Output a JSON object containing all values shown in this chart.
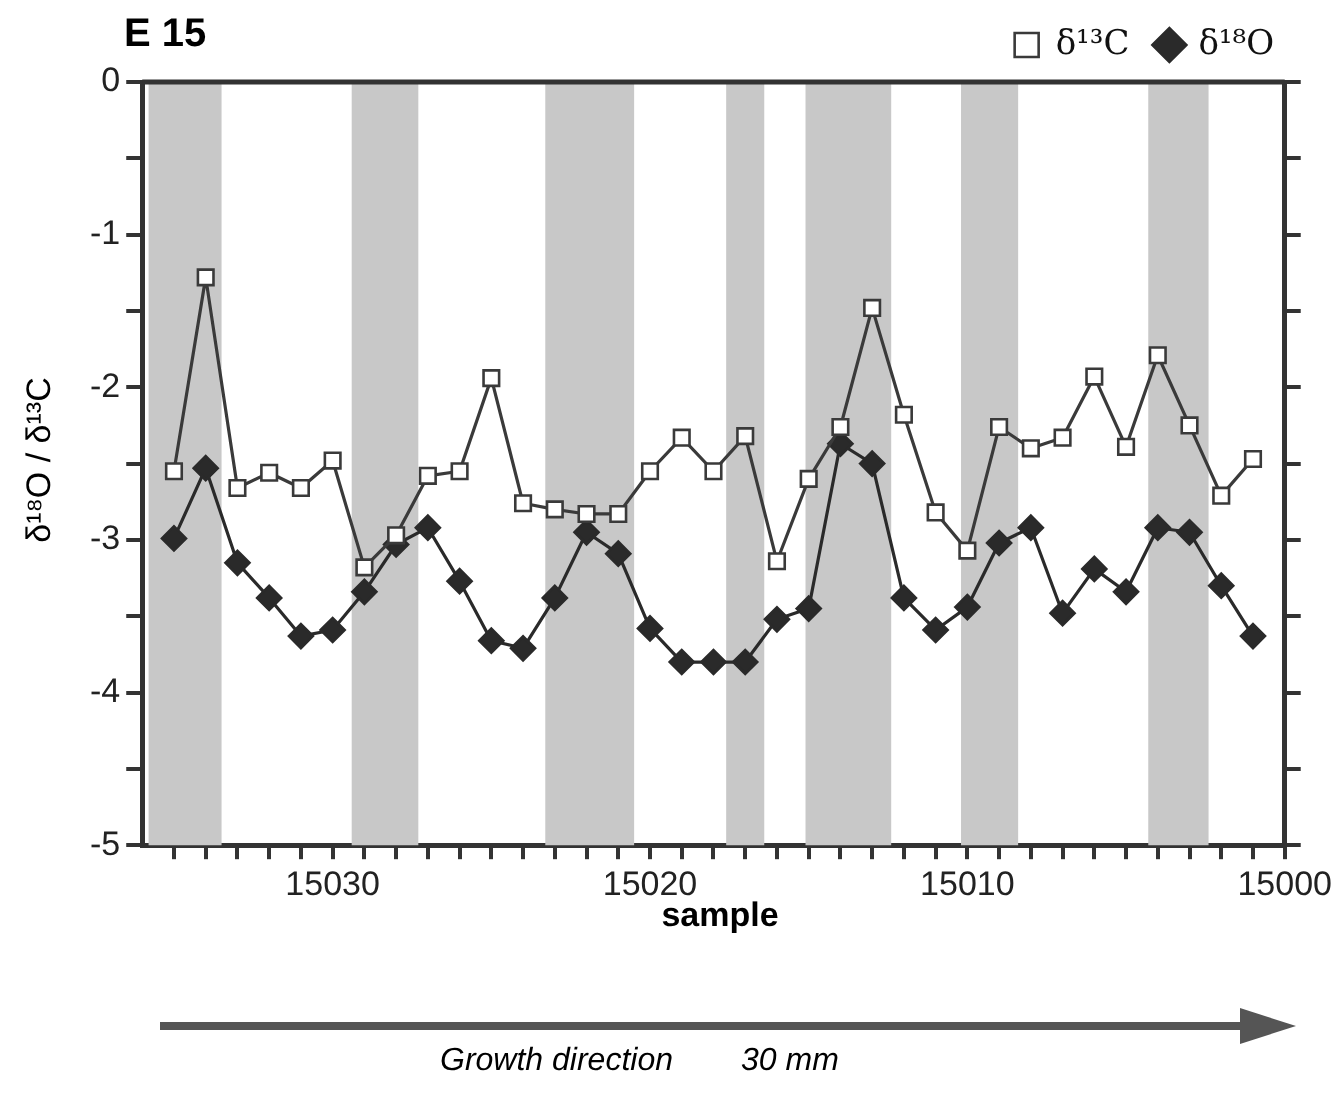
{
  "chart_data": {
    "type": "line",
    "title": "E 15",
    "xlabel": "sample",
    "ylabel": "δ¹⁸O / δ¹³C",
    "annotations": [
      "Growth direction",
      "30 mm"
    ],
    "x": [
      15035,
      15034,
      15033,
      15032,
      15031,
      15030,
      15029,
      15028,
      15027,
      15026,
      15025,
      15024,
      15023,
      15022,
      15021,
      15020,
      15019,
      15018,
      15017,
      15016,
      15015,
      15014,
      15013,
      15012,
      15011,
      15010,
      15009,
      15008,
      15007,
      15006,
      15005,
      15004,
      15003,
      15002,
      15001
    ],
    "series": [
      {
        "name": "δ¹³C",
        "color": "#3a3a3a",
        "marker": "square",
        "values": [
          -2.55,
          -1.28,
          -2.66,
          -2.56,
          -2.66,
          -2.48,
          -3.18,
          -2.97,
          -2.58,
          -2.55,
          -1.94,
          -2.76,
          -2.8,
          -2.83,
          -2.83,
          -2.55,
          -2.33,
          -2.55,
          -2.32,
          -3.14,
          -2.6,
          -2.26,
          -1.48,
          -2.18,
          -2.82,
          -3.07,
          -2.26,
          -2.4,
          -2.33,
          -1.93,
          -2.39,
          -1.79,
          -2.25,
          -2.71,
          -2.47
        ]
      },
      {
        "name": "δ¹⁸O",
        "color": "#2a2a2a",
        "marker": "diamond",
        "values": [
          -2.99,
          -2.53,
          -3.15,
          -3.38,
          -3.63,
          -3.59,
          -3.34,
          -3.03,
          -2.92,
          -3.27,
          -3.66,
          -3.71,
          -3.38,
          -2.95,
          -3.09,
          -3.58,
          -3.8,
          -3.8,
          -3.8,
          -3.52,
          -3.45,
          -2.37,
          -2.5,
          -3.38,
          -3.59,
          -3.44,
          -3.02,
          -2.92,
          -3.48,
          -3.19,
          -3.34,
          -2.92,
          -2.95,
          -3.3,
          -3.63
        ]
      }
    ],
    "xlim": [
      15036,
      15000
    ],
    "xticks": [
      {
        "value": 15035,
        "label": null
      },
      {
        "value": 15034,
        "label": null
      },
      {
        "value": 15033,
        "label": null
      },
      {
        "value": 15032,
        "label": null
      },
      {
        "value": 15031,
        "label": null
      },
      15030,
      {
        "value": 15029,
        "label": null
      },
      {
        "value": 15028,
        "label": null
      },
      {
        "value": 15027,
        "label": null
      },
      {
        "value": 15026,
        "label": null
      },
      {
        "value": 15025,
        "label": null
      },
      {
        "value": 15024,
        "label": null
      },
      {
        "value": 15023,
        "label": null
      },
      {
        "value": 15022,
        "label": null
      },
      {
        "value": 15021,
        "label": null
      },
      15020,
      {
        "value": 15019,
        "label": null
      },
      {
        "value": 15018,
        "label": null
      },
      {
        "value": 15017,
        "label": null
      },
      {
        "value": 15016,
        "label": null
      },
      {
        "value": 15015,
        "label": null
      },
      {
        "value": 15014,
        "label": null
      },
      {
        "value": 15013,
        "label": null
      },
      {
        "value": 15012,
        "label": null
      },
      {
        "value": 15011,
        "label": null
      },
      15010,
      {
        "value": 15009,
        "label": null
      },
      {
        "value": 15008,
        "label": null
      },
      {
        "value": 15007,
        "label": null
      },
      {
        "value": 15006,
        "label": null
      },
      {
        "value": 15005,
        "label": null
      },
      {
        "value": 15004,
        "label": null
      },
      {
        "value": 15003,
        "label": null
      },
      {
        "value": 15002,
        "label": null
      },
      {
        "value": 15001,
        "label": null
      },
      15000
    ],
    "ylim": [
      -5,
      0
    ],
    "yticks": [
      {
        "value": -5,
        "label": "-5"
      },
      {
        "value": -4.5,
        "label": null
      },
      {
        "value": -4,
        "label": "-4"
      },
      {
        "value": -3.5,
        "label": null
      },
      {
        "value": -3,
        "label": "-3"
      },
      {
        "value": -2.5,
        "label": null
      },
      {
        "value": -2,
        "label": "-2"
      },
      {
        "value": -1.5,
        "label": null
      },
      {
        "value": -1,
        "label": "-1"
      },
      {
        "value": -0.5,
        "label": null
      },
      0
    ],
    "bands": [
      {
        "axis": "x",
        "from": 15035.8,
        "to": 15033.5,
        "color": "#c8c8c8"
      },
      {
        "axis": "x",
        "from": 15029.4,
        "to": 15027.3,
        "color": "#c8c8c8"
      },
      {
        "axis": "x",
        "from": 15023.3,
        "to": 15020.5,
        "color": "#c8c8c8"
      },
      {
        "axis": "x",
        "from": 15017.6,
        "to": 15016.4,
        "color": "#c8c8c8"
      },
      {
        "axis": "x",
        "from": 15015.1,
        "to": 15012.4,
        "color": "#c8c8c8"
      },
      {
        "axis": "x",
        "from": 15010.2,
        "to": 15008.4,
        "color": "#c8c8c8"
      },
      {
        "axis": "x",
        "from": 15004.3,
        "to": 15002.4,
        "color": "#c8c8c8"
      }
    ],
    "legend": "top right",
    "grid": false,
    "line_style": "solid"
  }
}
